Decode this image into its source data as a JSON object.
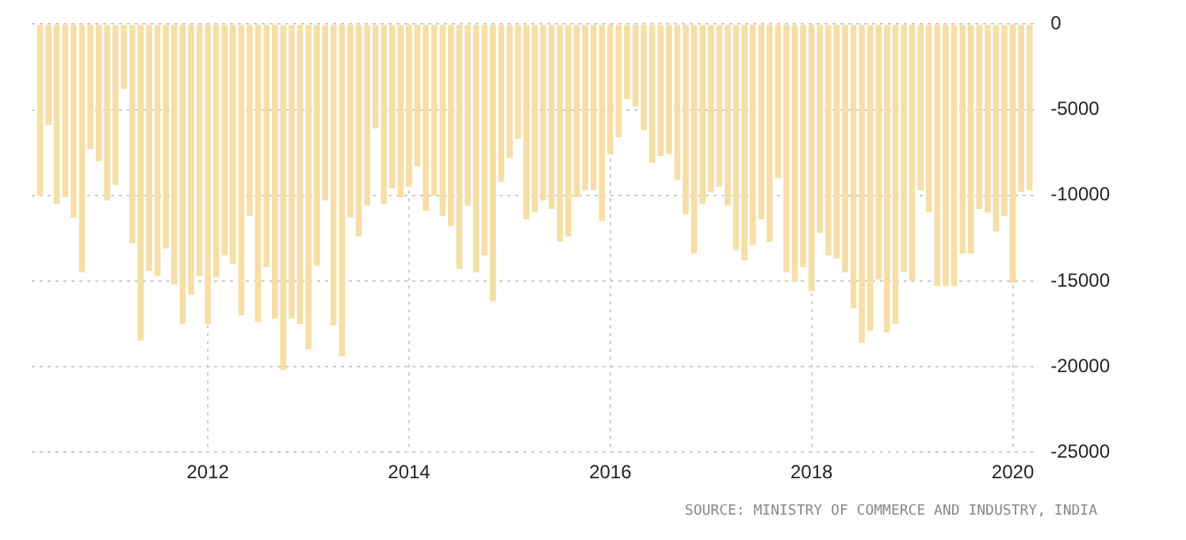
{
  "chart_data": {
    "type": "bar",
    "x": [
      "2010-05",
      "2010-06",
      "2010-07",
      "2010-08",
      "2010-09",
      "2010-10",
      "2010-11",
      "2010-12",
      "2011-01",
      "2011-02",
      "2011-03",
      "2011-04",
      "2011-05",
      "2011-06",
      "2011-07",
      "2011-08",
      "2011-09",
      "2011-10",
      "2011-11",
      "2011-12",
      "2012-01",
      "2012-02",
      "2012-03",
      "2012-04",
      "2012-05",
      "2012-06",
      "2012-07",
      "2012-08",
      "2012-09",
      "2012-10",
      "2012-11",
      "2012-12",
      "2013-01",
      "2013-02",
      "2013-03",
      "2013-04",
      "2013-05",
      "2013-06",
      "2013-07",
      "2013-08",
      "2013-09",
      "2013-10",
      "2013-11",
      "2013-12",
      "2014-01",
      "2014-02",
      "2014-03",
      "2014-04",
      "2014-05",
      "2014-06",
      "2014-07",
      "2014-08",
      "2014-09",
      "2014-10",
      "2014-11",
      "2014-12",
      "2015-01",
      "2015-02",
      "2015-03",
      "2015-04",
      "2015-05",
      "2015-06",
      "2015-07",
      "2015-08",
      "2015-09",
      "2015-10",
      "2015-11",
      "2015-12",
      "2016-01",
      "2016-02",
      "2016-03",
      "2016-04",
      "2016-05",
      "2016-06",
      "2016-07",
      "2016-08",
      "2016-09",
      "2016-10",
      "2016-11",
      "2016-12",
      "2017-01",
      "2017-02",
      "2017-03",
      "2017-04",
      "2017-05",
      "2017-06",
      "2017-07",
      "2017-08",
      "2017-09",
      "2017-10",
      "2017-11",
      "2017-12",
      "2018-01",
      "2018-02",
      "2018-03",
      "2018-04",
      "2018-05",
      "2018-06",
      "2018-07",
      "2018-08",
      "2018-09",
      "2018-10",
      "2018-11",
      "2018-12",
      "2019-01",
      "2019-02",
      "2019-03",
      "2019-04",
      "2019-05",
      "2019-06",
      "2019-07",
      "2019-08",
      "2019-09",
      "2019-10",
      "2019-11",
      "2019-12",
      "2020-01",
      "2020-02",
      "2020-03"
    ],
    "values": [
      -10000,
      -5900,
      -10500,
      -10100,
      -11300,
      -14500,
      -7300,
      -8000,
      -10300,
      -9400,
      -3800,
      -12800,
      -18500,
      -14400,
      -14700,
      -13100,
      -15200,
      -17500,
      -15800,
      -14700,
      -17500,
      -14800,
      -13500,
      -14000,
      -17000,
      -11200,
      -17400,
      -14200,
      -17200,
      -20200,
      -17200,
      -17500,
      -19000,
      -14100,
      -10300,
      -17600,
      -19400,
      -11300,
      -12400,
      -10600,
      -6100,
      -10500,
      -9600,
      -10100,
      -9500,
      -8300,
      -10900,
      -10000,
      -11200,
      -11800,
      -14300,
      -10600,
      -14500,
      -13500,
      -16200,
      -9200,
      -7800,
      -6700,
      -11400,
      -11000,
      -10300,
      -10800,
      -12700,
      -12400,
      -10100,
      -9700,
      -9700,
      -11500,
      -7600,
      -6600,
      -4400,
      -4800,
      -6200,
      -8100,
      -7700,
      -7600,
      -9100,
      -11100,
      -13400,
      -10500,
      -9800,
      -9500,
      -10600,
      -13200,
      -13800,
      -12900,
      -11400,
      -12700,
      -9000,
      -14500,
      -15000,
      -14200,
      -15600,
      -12200,
      -13500,
      -13700,
      -14500,
      -16600,
      -18600,
      -17900,
      -14900,
      -18000,
      -17500,
      -14500,
      -15000,
      -9700,
      -11000,
      -15300,
      -15300,
      -15300,
      -13400,
      -13400,
      -10800,
      -11000,
      -12100,
      -11200,
      -15100,
      -9800,
      -9700
    ],
    "color": "#f6dea6",
    "xlim": [
      "2010-04",
      "2020-04"
    ],
    "xticks": [
      "2012",
      "2014",
      "2016",
      "2018",
      "2020"
    ],
    "ylim": [
      -25000,
      0
    ],
    "yticks": [
      -25000,
      -20000,
      -15000,
      -10000,
      -5000,
      0
    ],
    "grid": true,
    "annotations": [
      "SOURCE: MINISTRY OF COMMERCE AND INDUSTRY, INDIA"
    ]
  }
}
